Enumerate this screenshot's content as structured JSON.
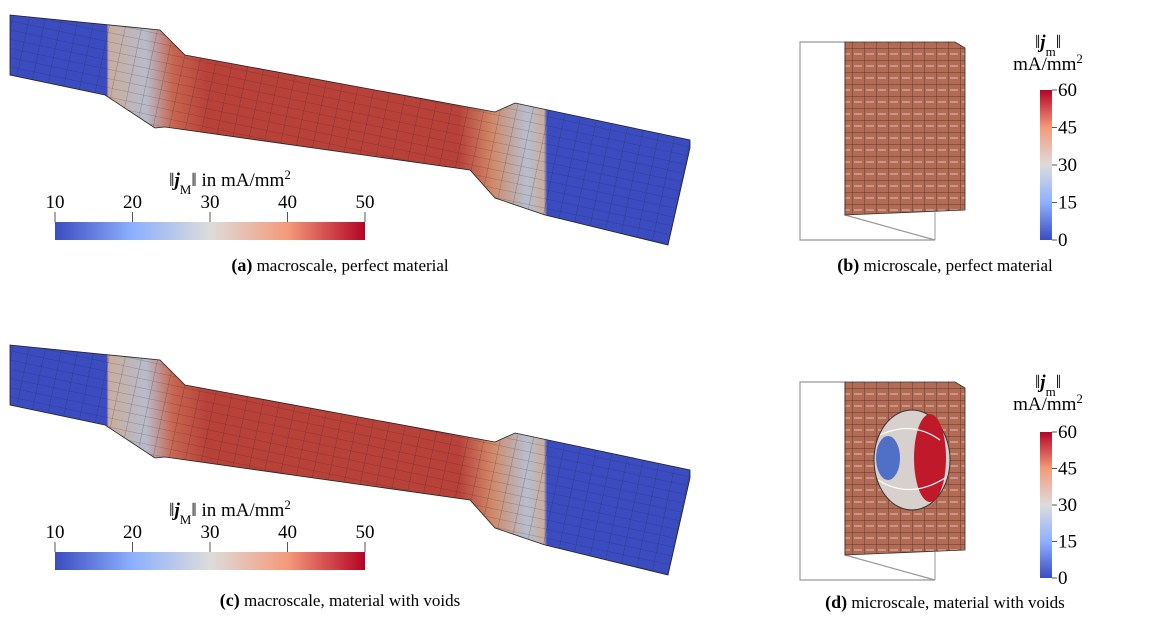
{
  "panels": [
    {
      "label": "(a)",
      "caption": "macroscale, perfect material",
      "colorbar": {
        "orientation": "horizontal",
        "title_lines": [
          [
            {
              "text": "‖"
            },
            {
              "text": "j",
              "style": "var"
            },
            {
              "text": "M",
              "style": "sub"
            },
            {
              "text": "‖ in mA/mm"
            },
            {
              "text": "2",
              "style": "sup"
            }
          ]
        ],
        "range": [
          10,
          50
        ],
        "ticks": [
          10,
          20,
          30,
          40,
          50
        ]
      }
    },
    {
      "label": "(b)",
      "caption": "microscale, perfect material",
      "colorbar": {
        "orientation": "vertical",
        "title_lines": [
          [
            {
              "text": "‖"
            },
            {
              "text": "j",
              "style": "var"
            },
            {
              "text": "m",
              "style": "sub"
            },
            {
              "text": "‖"
            }
          ],
          [
            {
              "text": "mA/mm"
            },
            {
              "text": "2",
              "style": "sup"
            }
          ]
        ],
        "range": [
          0,
          60
        ],
        "ticks": [
          0,
          15,
          30,
          45,
          60
        ]
      }
    },
    {
      "label": "(c)",
      "caption": "macroscale, material with voids",
      "colorbar": {
        "orientation": "horizontal",
        "title_lines": [
          [
            {
              "text": "‖"
            },
            {
              "text": "j",
              "style": "var"
            },
            {
              "text": "M",
              "style": "sub"
            },
            {
              "text": "‖ in mA/mm"
            },
            {
              "text": "2",
              "style": "sup"
            }
          ]
        ],
        "range": [
          10,
          50
        ],
        "ticks": [
          10,
          20,
          30,
          40,
          50
        ]
      }
    },
    {
      "label": "(d)",
      "caption": "microscale, material with voids",
      "colorbar": {
        "orientation": "vertical",
        "title_lines": [
          [
            {
              "text": "‖"
            },
            {
              "text": "j",
              "style": "var"
            },
            {
              "text": "m",
              "style": "sub"
            },
            {
              "text": "‖"
            }
          ],
          [
            {
              "text": "mA/mm"
            },
            {
              "text": "2",
              "style": "sup"
            }
          ]
        ],
        "range": [
          0,
          60
        ],
        "ticks": [
          0,
          15,
          30,
          45,
          60
        ]
      }
    }
  ]
}
